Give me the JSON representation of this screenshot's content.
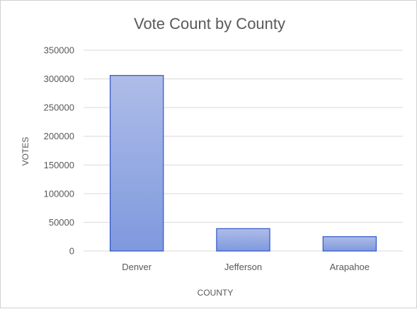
{
  "chart_data": {
    "type": "bar",
    "title": "Vote Count  by County",
    "xlabel": "COUNTY",
    "ylabel": "VOTES",
    "categories": [
      "Denver",
      "Jefferson",
      "Arapahoe"
    ],
    "values": [
      306000,
      39000,
      25000
    ],
    "ylim": [
      0,
      350000
    ],
    "yticks": [
      "0",
      "50000",
      "100000",
      "150000",
      "200000",
      "250000",
      "300000",
      "350000"
    ],
    "grid": true,
    "legend": "none",
    "colors": {
      "bar_top": "#aebce8",
      "bar_bottom": "#7f99de",
      "bar_border": "#2f55c8",
      "grid": "#d9d9d9",
      "text": "#595959"
    }
  }
}
